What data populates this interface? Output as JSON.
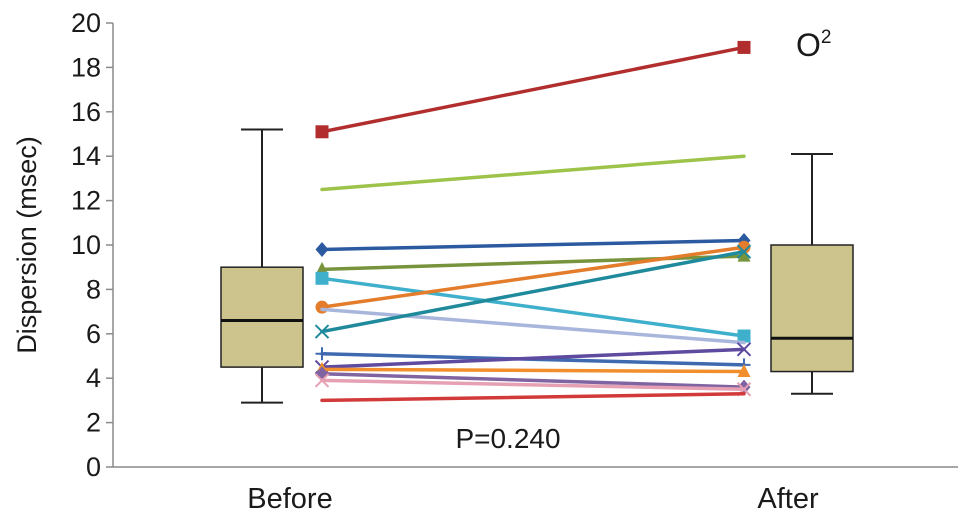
{
  "chart_data": {
    "type": "box-paired",
    "title": "",
    "panel_label": "O",
    "panel_label_superscript": "2",
    "ylabel": "Dispersion (msec)",
    "xlabel": "",
    "categories": [
      "Before",
      "After"
    ],
    "ylim": [
      0,
      20
    ],
    "yticks": [
      "0",
      "2",
      "4",
      "6",
      "8",
      "10",
      "12",
      "14",
      "16",
      "18",
      "20"
    ],
    "annotation": "P=0.240",
    "grid": false,
    "legend": "none",
    "box_color": "#ccc48c",
    "boxes": [
      {
        "category": "Before",
        "min": 2.9,
        "q1": 4.5,
        "median": 6.6,
        "q3": 9.0,
        "max": 15.2
      },
      {
        "category": "After",
        "min": 3.3,
        "q1": 4.3,
        "median": 5.8,
        "q3": 10.0,
        "max": 14.1
      }
    ],
    "series": [
      {
        "values": [
          15.1,
          18.9
        ],
        "color": "#b22e2e",
        "marker": "square"
      },
      {
        "values": [
          12.5,
          14.0
        ],
        "color": "#9dc34a",
        "marker": "none"
      },
      {
        "values": [
          9.8,
          10.2
        ],
        "color": "#2c5aa0",
        "marker": "diamond"
      },
      {
        "values": [
          8.9,
          9.5
        ],
        "color": "#77933c",
        "marker": "triangle"
      },
      {
        "values": [
          8.5,
          5.9
        ],
        "color": "#3fb0cc",
        "marker": "square"
      },
      {
        "values": [
          7.2,
          9.9
        ],
        "color": "#e37d2b",
        "marker": "circle"
      },
      {
        "values": [
          7.1,
          5.6
        ],
        "color": "#a9b6dc",
        "marker": "none"
      },
      {
        "values": [
          6.1,
          9.7
        ],
        "color": "#1f8a9c",
        "marker": "x"
      },
      {
        "values": [
          5.1,
          4.6
        ],
        "color": "#3f6ab0",
        "marker": "plus"
      },
      {
        "values": [
          4.5,
          5.3
        ],
        "color": "#5e4a9e",
        "marker": "x"
      },
      {
        "values": [
          4.4,
          4.3
        ],
        "color": "#f28e2b",
        "marker": "triangle"
      },
      {
        "values": [
          4.2,
          3.6
        ],
        "color": "#8064a2",
        "marker": "diamond"
      },
      {
        "values": [
          3.9,
          3.5
        ],
        "color": "#e6a0b4",
        "marker": "x"
      },
      {
        "values": [
          3.0,
          3.3
        ],
        "color": "#d23a3a",
        "marker": "none"
      }
    ]
  }
}
